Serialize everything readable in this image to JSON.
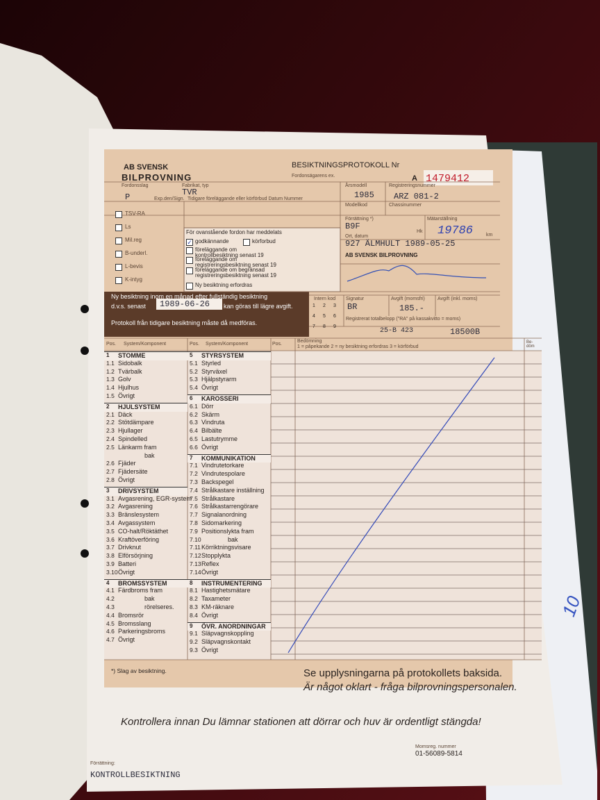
{
  "header": {
    "logo_line1": "AB SVENSK",
    "logo_line2": "BILPROVNING",
    "title": "BESIKTNINGSPROTOKOLL Nr",
    "series": "A",
    "number": "1479412",
    "owner_copy": "Fordonsägarens ex."
  },
  "vehicle": {
    "kind_label": "Fordonsslag",
    "kind": "P",
    "make_label": "Fabrikat, typ",
    "make": "TVR",
    "year_label": "Årsmodell",
    "year": "1985",
    "reg_label": "Registreringsnummer",
    "reg": "ARZ 081-2",
    "model_label": "Modellkod",
    "chassis_label": "Chassinummer",
    "inspection_label": "Förrättning *)",
    "inspection": "B9F",
    "odometer_label": "Mätarställning",
    "odometer": "19786",
    "km": "km",
    "hk": "Hk"
  },
  "registry": {
    "exp_label": "Exp.den/Sign.",
    "previous_label": "Tidigare föreläggande eller körförbud Datum Nummer",
    "rows": [
      "TSV-RA",
      "Ls",
      "Mil.reg",
      "B-underl.",
      "L-bevis",
      "K-intyg"
    ]
  },
  "approval": {
    "intro": "För ovanstående fordon har meddelats",
    "options": [
      {
        "label": "godkännande",
        "checked": true
      },
      {
        "label": "körforbud",
        "checked": false
      },
      {
        "label": "föreläggande om kontrollbesiktning senast 19",
        "checked": false
      },
      {
        "label": "föreläggande om registreringsbesiktning senast 19",
        "checked": false
      },
      {
        "label": "föreläggande om begränsad registreringsbesiktning senast 19",
        "checked": false
      },
      {
        "label": "Ny besiktning erfordras",
        "checked": false
      }
    ],
    "place_date_label": "Ort, datum",
    "place_date": "927 ÄLMHULT 1989-05-25",
    "org": "AB SVENSK BILPROVNING"
  },
  "notice": {
    "line1": "Ny besiktning inom en månad efter fullständig besiktning",
    "line2": "d.v.s. senast",
    "date": "1989-06-26",
    "suffix": "kan göras till lägre avgift.",
    "protocol": "Protokoll från tidigare besiktning måste då medföras."
  },
  "fees": {
    "intern_label": "Intern kod",
    "keypad": [
      "1",
      "2",
      "3",
      "4",
      "5",
      "6",
      "7",
      "8",
      "9"
    ],
    "signature_label": "Signatur",
    "signature": "BR",
    "fee_label": "Avgift (momsfri)",
    "fee": "185.-",
    "fee_vat_label": "Avgift (inkl. moms)",
    "total_label": "Registrerat totalbelopp (\"RA\" på kassakvitto = moms)",
    "receipt": "25-B 423",
    "total": "18500B"
  },
  "table": {
    "pos": "Pos.",
    "component": "System/Komponent",
    "assessment": "Bedömning",
    "legend": "1 = påpekande   2 = ny besiktning erfordras   3 = körförbud",
    "rem": "Be-döm"
  },
  "sections": [
    {
      "num": "1",
      "title": "STOMME",
      "items": [
        {
          "pos": "1.1",
          "name": "Sidobalk"
        },
        {
          "pos": "1.2",
          "name": "Tvärbalk"
        },
        {
          "pos": "1.3",
          "name": "Golv"
        },
        {
          "pos": "1.4",
          "name": "Hjulhus"
        },
        {
          "pos": "1.5",
          "name": "Övrigt"
        }
      ]
    },
    {
      "num": "2",
      "title": "HJULSYSTEM",
      "items": [
        {
          "pos": "2.1",
          "name": "Däck"
        },
        {
          "pos": "2.2",
          "name": "Stötdämpare"
        },
        {
          "pos": "2.3",
          "name": "Hjullager"
        },
        {
          "pos": "2.4",
          "name": "Spindelled"
        },
        {
          "pos": "2.5",
          "name": "Länkarm fram"
        },
        {
          "name": "bak"
        },
        {
          "pos": "2.6",
          "name": "Fjäder"
        },
        {
          "pos": "2.7",
          "name": "Fjädersäte"
        },
        {
          "pos": "2.8",
          "name": "Övrigt"
        }
      ]
    },
    {
      "num": "3",
      "title": "DRIVSYSTEM",
      "items": [
        {
          "pos": "3.1",
          "name": "Avgasrening, EGR-system"
        },
        {
          "pos": "3.2",
          "name": "Avgasrening"
        },
        {
          "pos": "3.3",
          "name": "Bränslesystem"
        },
        {
          "pos": "3.4",
          "name": "Avgassystem"
        },
        {
          "pos": "3.5",
          "name": "CO-halt/Röktäthet"
        },
        {
          "pos": "3.6",
          "name": "Kraftöverföring"
        },
        {
          "pos": "3.7",
          "name": "Drivknut"
        },
        {
          "pos": "3.8",
          "name": "Elförsörjning"
        },
        {
          "pos": "3.9",
          "name": "Batteri"
        },
        {
          "pos": "3.10",
          "name": "Övrigt"
        }
      ]
    },
    {
      "num": "4",
      "title": "BROMSSYSTEM",
      "items": [
        {
          "pos": "4.1",
          "name": "Färdbroms fram"
        },
        {
          "pos": "4.2",
          "name": "bak"
        },
        {
          "pos": "4.3",
          "name": "rörelseres."
        },
        {
          "pos": "4.4",
          "name": "Bromsrör"
        },
        {
          "pos": "4.5",
          "name": "Bromsslang"
        },
        {
          "pos": "4.6",
          "name": "Parkeringsbroms"
        },
        {
          "pos": "4.7",
          "name": "Övrigt"
        }
      ]
    },
    {
      "num": "5",
      "title": "STYRSYSTEM",
      "items": [
        {
          "pos": "5.1",
          "name": "Styrled"
        },
        {
          "pos": "5.2",
          "name": "Styrväxel"
        },
        {
          "pos": "5.3",
          "name": "Hjälpstyrarm"
        },
        {
          "pos": "5.4",
          "name": "Övrigt"
        }
      ]
    },
    {
      "num": "6",
      "title": "KAROSSERI",
      "items": [
        {
          "pos": "6.1",
          "name": "Dörr"
        },
        {
          "pos": "6.2",
          "name": "Skärm"
        },
        {
          "pos": "6.3",
          "name": "Vindruta"
        },
        {
          "pos": "6.4",
          "name": "Bilbälte"
        },
        {
          "pos": "6.5",
          "name": "Lastutrymme"
        },
        {
          "pos": "6.6",
          "name": "Övrigt"
        }
      ]
    },
    {
      "num": "7",
      "title": "KOMMUNIKATION",
      "items": [
        {
          "pos": "7.1",
          "name": "Vindrutetorkare"
        },
        {
          "pos": "7.2",
          "name": "Vindrutespolare"
        },
        {
          "pos": "7.3",
          "name": "Backspegel"
        },
        {
          "pos": "7.4",
          "name": "Strålkastare inställning"
        },
        {
          "pos": "7.5",
          "name": "Strålkastare"
        },
        {
          "pos": "7.6",
          "name": "Strålkastarrengörare"
        },
        {
          "pos": "7.7",
          "name": "Signalanordning"
        },
        {
          "pos": "7.8",
          "name": "Sidomarkering"
        },
        {
          "pos": "7.9",
          "name": "Positionslykta fram"
        },
        {
          "pos": "7.10",
          "name": "bak"
        },
        {
          "pos": "7.11",
          "name": "Körriktningsvisare"
        },
        {
          "pos": "7.12",
          "name": "Stopplykta"
        },
        {
          "pos": "7.13",
          "name": "Reflex"
        },
        {
          "pos": "7.14",
          "name": "Övrigt"
        }
      ]
    },
    {
      "num": "8",
      "title": "INSTRUMENTERING",
      "items": [
        {
          "pos": "8.1",
          "name": "Hastighetsmätare"
        },
        {
          "pos": "8.2",
          "name": "Taxameter"
        },
        {
          "pos": "8.3",
          "name": "KM-räknare"
        },
        {
          "pos": "8.4",
          "name": "Övrigt"
        }
      ]
    },
    {
      "num": "9",
      "title": "ÖVR. ANORDNINGAR",
      "items": [
        {
          "pos": "9.1",
          "name": "Släpvagnskoppling"
        },
        {
          "pos": "9.2",
          "name": "Släpvagnskontakt"
        },
        {
          "pos": "9.3",
          "name": "Övrigt"
        }
      ]
    }
  ],
  "footer": {
    "note": "*) Slag av besiktning.",
    "info1": "Se upplysningarna på protokollets baksida.",
    "info2": "Är något oklart - fråga bilprovningspersonalen.",
    "warning": "Kontrollera innan Du lämnar stationen att dörrar och huv är ordentligt stängda!",
    "vat_label": "Momsreg. nummer",
    "vat": "01-56089-5814",
    "type_label": "Förrättning:",
    "type": "KONTROLLBESIKTNING"
  },
  "handwritten_note": "10"
}
